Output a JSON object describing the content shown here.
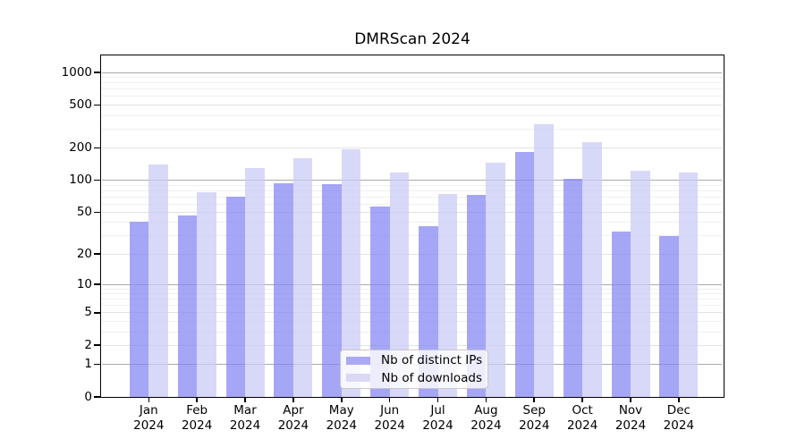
{
  "chart_data": {
    "type": "bar",
    "title": "DMRScan 2024",
    "y_scale": "log1p",
    "ylim": [
      0,
      1440
    ],
    "categories": [
      {
        "month": "Jan",
        "year": "2024"
      },
      {
        "month": "Feb",
        "year": "2024"
      },
      {
        "month": "Mar",
        "year": "2024"
      },
      {
        "month": "Apr",
        "year": "2024"
      },
      {
        "month": "May",
        "year": "2024"
      },
      {
        "month": "Jun",
        "year": "2024"
      },
      {
        "month": "Jul",
        "year": "2024"
      },
      {
        "month": "Aug",
        "year": "2024"
      },
      {
        "month": "Sep",
        "year": "2024"
      },
      {
        "month": "Oct",
        "year": "2024"
      },
      {
        "month": "Nov",
        "year": "2024"
      },
      {
        "month": "Dec",
        "year": "2024"
      }
    ],
    "series": [
      {
        "name": "Nb of distinct IPs",
        "color": "#a9a9f4",
        "fill": "rgba(132,132,244,0.72)",
        "values": [
          41,
          47,
          70,
          93,
          92,
          57,
          37,
          73,
          185,
          103,
          33,
          30
        ]
      },
      {
        "name": "Nb of downloads",
        "color": "#d9d9f6",
        "fill": "rgba(203,203,246,0.75)",
        "values": [
          140,
          78,
          130,
          160,
          196,
          118,
          75,
          147,
          330,
          228,
          123,
          118
        ]
      }
    ],
    "y_ticks": [
      0,
      1,
      2,
      5,
      10,
      20,
      50,
      100,
      200,
      500,
      1000
    ],
    "gridlines": {
      "major": [
        1,
        10,
        100,
        1000
      ],
      "sub": [
        2,
        5,
        20,
        50,
        200,
        500
      ],
      "minor": [
        3,
        4,
        6,
        7,
        8,
        9,
        30,
        40,
        60,
        70,
        80,
        90,
        300,
        400,
        600,
        700,
        800,
        900
      ],
      "major_color": "#ababab",
      "sub_color": "#e2e2e2",
      "minor_color": "#f0f0f0"
    },
    "legend_position": "lower center"
  }
}
